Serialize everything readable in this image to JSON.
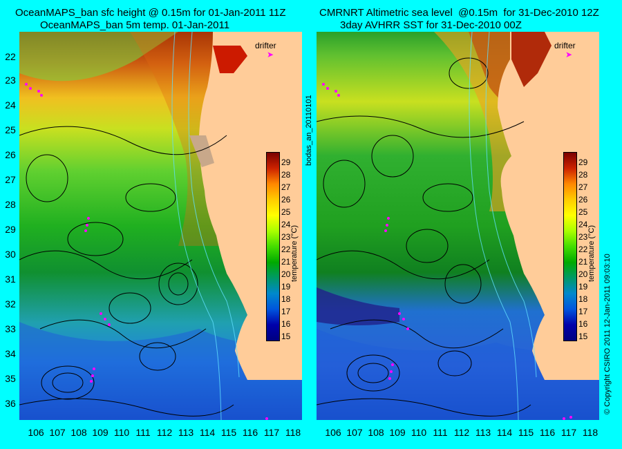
{
  "titles": {
    "left_line1": "OceanMAPS_ban sfc height @ 0.15m for 01-Jan-2011 11Z",
    "left_line2": "OceanMAPS_ban 5m temp. 01-Jan-2011",
    "right_line1": "CMRNRT Altimetric sea level  @0.15m  for 31-Dec-2010 12Z",
    "right_line2": "3day AVHRR SST for 31-Dec-2010 00Z"
  },
  "axes": {
    "lat_labels": [
      "22",
      "23",
      "24",
      "25",
      "26",
      "27",
      "28",
      "29",
      "30",
      "31",
      "32",
      "33",
      "34",
      "35",
      "36"
    ],
    "lon_labels": [
      "106",
      "107",
      "108",
      "109",
      "110",
      "111",
      "112",
      "113",
      "114",
      "115",
      "116",
      "117",
      "118"
    ]
  },
  "colorbar": {
    "title": "temperature (°C)",
    "ticks": [
      "29",
      "28",
      "27",
      "26",
      "25",
      "24",
      "23",
      "22",
      "21",
      "20",
      "19",
      "18",
      "17",
      "16",
      "15"
    ],
    "min": 15,
    "max": 29
  },
  "drifter": {
    "label": "drifter",
    "marker": "➤"
  },
  "side_labels": {
    "left_vertical": "bodas_an_20110101",
    "right_vertical": "© Copyright CSIRO 2011   12-Jan-2011 09:03:10"
  },
  "colors": {
    "background": "#00ffff",
    "land": "#ffcc99",
    "drifter": "#ff00ff"
  }
}
